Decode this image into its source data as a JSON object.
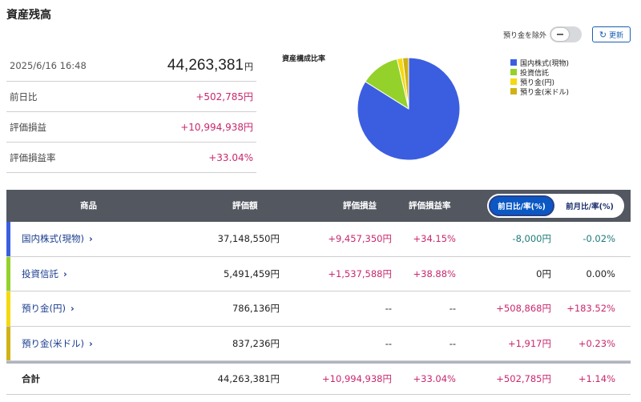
{
  "page": {
    "title": "資産残高"
  },
  "controls": {
    "exclude_label": "預り金を除外",
    "refresh_label": "更新"
  },
  "summary": {
    "datetime": "2025/6/16 16:48",
    "total_value": "44,263,381",
    "total_unit": "円",
    "rows": [
      {
        "label": "前日比",
        "value": "+502,785円"
      },
      {
        "label": "評価損益",
        "value": "+10,994,938円"
      },
      {
        "label": "評価損益率",
        "value": "+33.04%"
      }
    ]
  },
  "chart_data": {
    "type": "pie",
    "title": "資産構成比率",
    "legend_position": "right",
    "labels": [
      "国内株式(現物)",
      "投資信託",
      "預り金(円)",
      "預り金(米ドル)"
    ],
    "values": [
      37148550,
      5491459,
      786136,
      837236
    ],
    "colors": [
      "#3b5ee0",
      "#94d12a",
      "#f5d90e",
      "#d0b216"
    ]
  },
  "table": {
    "headers": {
      "product": "商品",
      "value": "評価額",
      "gain": "評価損益",
      "rate": "評価損益率"
    },
    "toggle": {
      "active": "前日比/率(%)",
      "inactive": "前月比/率(%)"
    },
    "rows": [
      {
        "name": "国内株式(現物)",
        "value": "37,148,550円",
        "gain": "+9,457,350円",
        "rate": "+34.15%",
        "day": "-8,000円",
        "day_rate": "-0.02%",
        "color": "#3b5ee0",
        "day_tone": "neg",
        "chev": "›"
      },
      {
        "name": "投資信託",
        "value": "5,491,459円",
        "gain": "+1,537,588円",
        "rate": "+38.88%",
        "day": "0円",
        "day_rate": "0.00%",
        "color": "#94d12a",
        "day_tone": "plain",
        "chev": "›"
      },
      {
        "name": "預り金(円)",
        "value": "786,136円",
        "gain": "--",
        "rate": "--",
        "day": "+508,868円",
        "day_rate": "+183.52%",
        "color": "#f5d90e",
        "day_tone": "pos",
        "chev": "›"
      },
      {
        "name": "預り金(米ドル)",
        "value": "837,236円",
        "gain": "--",
        "rate": "--",
        "day": "+1,917円",
        "day_rate": "+0.23%",
        "color": "#d0b216",
        "day_tone": "pos",
        "chev": "›"
      }
    ],
    "total": {
      "name": "合計",
      "value": "44,263,381円",
      "gain": "+10,994,938円",
      "rate": "+33.04%",
      "day": "+502,785円",
      "day_rate": "+1.14%"
    }
  }
}
